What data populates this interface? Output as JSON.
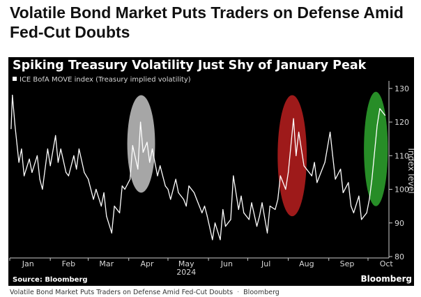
{
  "article": {
    "headline": "Volatile Bond Market Puts Traders on Defense Amid Fed-Cut Doubts",
    "caption_text": "Volatile Bond Market Puts Traders on Defense Amid Fed-Cut Doubts",
    "caption_separator": "·",
    "caption_publisher": "Bloomberg"
  },
  "footer": {
    "source": "Source: Bloomberg",
    "brand": "Bloomberg"
  },
  "chart_data": {
    "type": "line",
    "title": "Spiking Treasury Volatility Just Shy of January Peak",
    "ylabel": "Index level",
    "xlabel": "2024",
    "ylim": [
      80,
      131
    ],
    "yticks": [
      80,
      90,
      100,
      110,
      120,
      130
    ],
    "x_months": [
      "Jan",
      "Feb",
      "Mar",
      "Apr",
      "May",
      "Jun",
      "Jul",
      "Aug",
      "Sep",
      "Oct"
    ],
    "grid": false,
    "legend_position": "top-left",
    "colors": {
      "background": "#000000",
      "line": "#ffffff",
      "highlight_april": "#bdbdbd",
      "highlight_august": "#b41e1e",
      "highlight_october": "#2ca02c"
    },
    "series": [
      {
        "name": "ICE BofA MOVE index (Treasury implied volatility)",
        "x": [
          "2024-01-02",
          "2024-01-03",
          "2024-01-05",
          "2024-01-08",
          "2024-01-10",
          "2024-01-12",
          "2024-01-16",
          "2024-01-18",
          "2024-01-22",
          "2024-01-24",
          "2024-01-26",
          "2024-01-30",
          "2024-02-01",
          "2024-02-05",
          "2024-02-07",
          "2024-02-09",
          "2024-02-13",
          "2024-02-15",
          "2024-02-19",
          "2024-02-21",
          "2024-02-23",
          "2024-02-27",
          "2024-03-01",
          "2024-03-05",
          "2024-03-07",
          "2024-03-11",
          "2024-03-13",
          "2024-03-15",
          "2024-03-19",
          "2024-03-21",
          "2024-03-25",
          "2024-03-27",
          "2024-03-29",
          "2024-04-02",
          "2024-04-04",
          "2024-04-08",
          "2024-04-10",
          "2024-04-12",
          "2024-04-15",
          "2024-04-17",
          "2024-04-19",
          "2024-04-23",
          "2024-04-25",
          "2024-04-29",
          "2024-05-01",
          "2024-05-03",
          "2024-05-07",
          "2024-05-09",
          "2024-05-13",
          "2024-05-15",
          "2024-05-17",
          "2024-05-21",
          "2024-05-23",
          "2024-05-27",
          "2024-05-29",
          "2024-05-31",
          "2024-06-04",
          "2024-06-06",
          "2024-06-10",
          "2024-06-12",
          "2024-06-14",
          "2024-06-18",
          "2024-06-20",
          "2024-06-24",
          "2024-06-26",
          "2024-06-28",
          "2024-07-02",
          "2024-07-04",
          "2024-07-08",
          "2024-07-10",
          "2024-07-12",
          "2024-07-16",
          "2024-07-18",
          "2024-07-22",
          "2024-07-24",
          "2024-07-26",
          "2024-07-30",
          "2024-08-01",
          "2024-08-05",
          "2024-08-07",
          "2024-08-09",
          "2024-08-13",
          "2024-08-15",
          "2024-08-19",
          "2024-08-21",
          "2024-08-23",
          "2024-08-27",
          "2024-08-29",
          "2024-09-02",
          "2024-09-04",
          "2024-09-06",
          "2024-09-10",
          "2024-09-12",
          "2024-09-16",
          "2024-09-18",
          "2024-09-20",
          "2024-09-24",
          "2024-09-26",
          "2024-09-30",
          "2024-10-02",
          "2024-10-04",
          "2024-10-08",
          "2024-10-10",
          "2024-10-14"
        ],
        "values": [
          118,
          128,
          119,
          108,
          112,
          104,
          109,
          105,
          110,
          103,
          100,
          112,
          107,
          116,
          108,
          112,
          105,
          104,
          110,
          106,
          112,
          105,
          103,
          97,
          100,
          95,
          99,
          92,
          87,
          95,
          93,
          101,
          100,
          103,
          113,
          106,
          120,
          111,
          114,
          108,
          112,
          104,
          107,
          101,
          100,
          97,
          103,
          99,
          97,
          95,
          101,
          99,
          97,
          93,
          95,
          92,
          85,
          90,
          85,
          94,
          89,
          91,
          104,
          94,
          98,
          93,
          91,
          96,
          89,
          92,
          96,
          87,
          95,
          94,
          97,
          104,
          100,
          105,
          121,
          110,
          117,
          107,
          106,
          104,
          108,
          102,
          106,
          108,
          117,
          110,
          103,
          106,
          99,
          102,
          95,
          93,
          98,
          91,
          93,
          97,
          103,
          119,
          124,
          122
        ]
      }
    ]
  }
}
